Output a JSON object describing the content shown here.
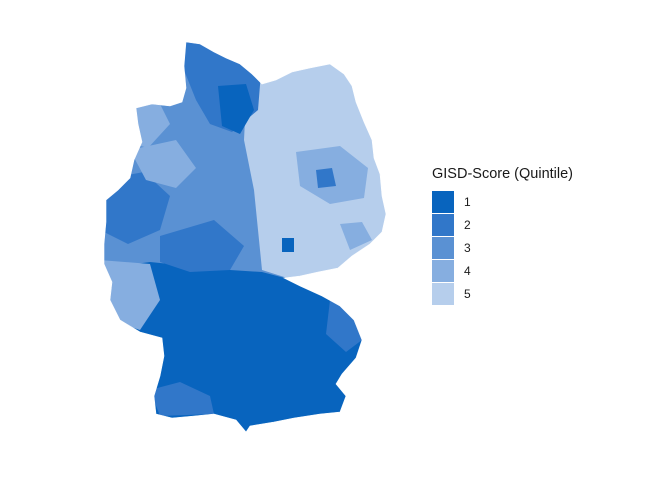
{
  "legend": {
    "title": "GISD-Score (Quintile)",
    "items": [
      {
        "label": "1",
        "color": "#0864BE"
      },
      {
        "label": "2",
        "color": "#3177C9"
      },
      {
        "label": "3",
        "color": "#5A91D3"
      },
      {
        "label": "4",
        "color": "#86AEE0"
      },
      {
        "label": "5",
        "color": "#B6CEEC"
      }
    ]
  },
  "map_data": {
    "type": "choropleth",
    "region": "Germany",
    "variable": "GISD-Score (Quintile)",
    "zones": [
      {
        "area": "east",
        "quintile": 5
      },
      {
        "area": "north",
        "quintile": 3
      },
      {
        "area": "central-west",
        "quintile": 3
      },
      {
        "area": "south",
        "quintile": 1
      }
    ]
  }
}
